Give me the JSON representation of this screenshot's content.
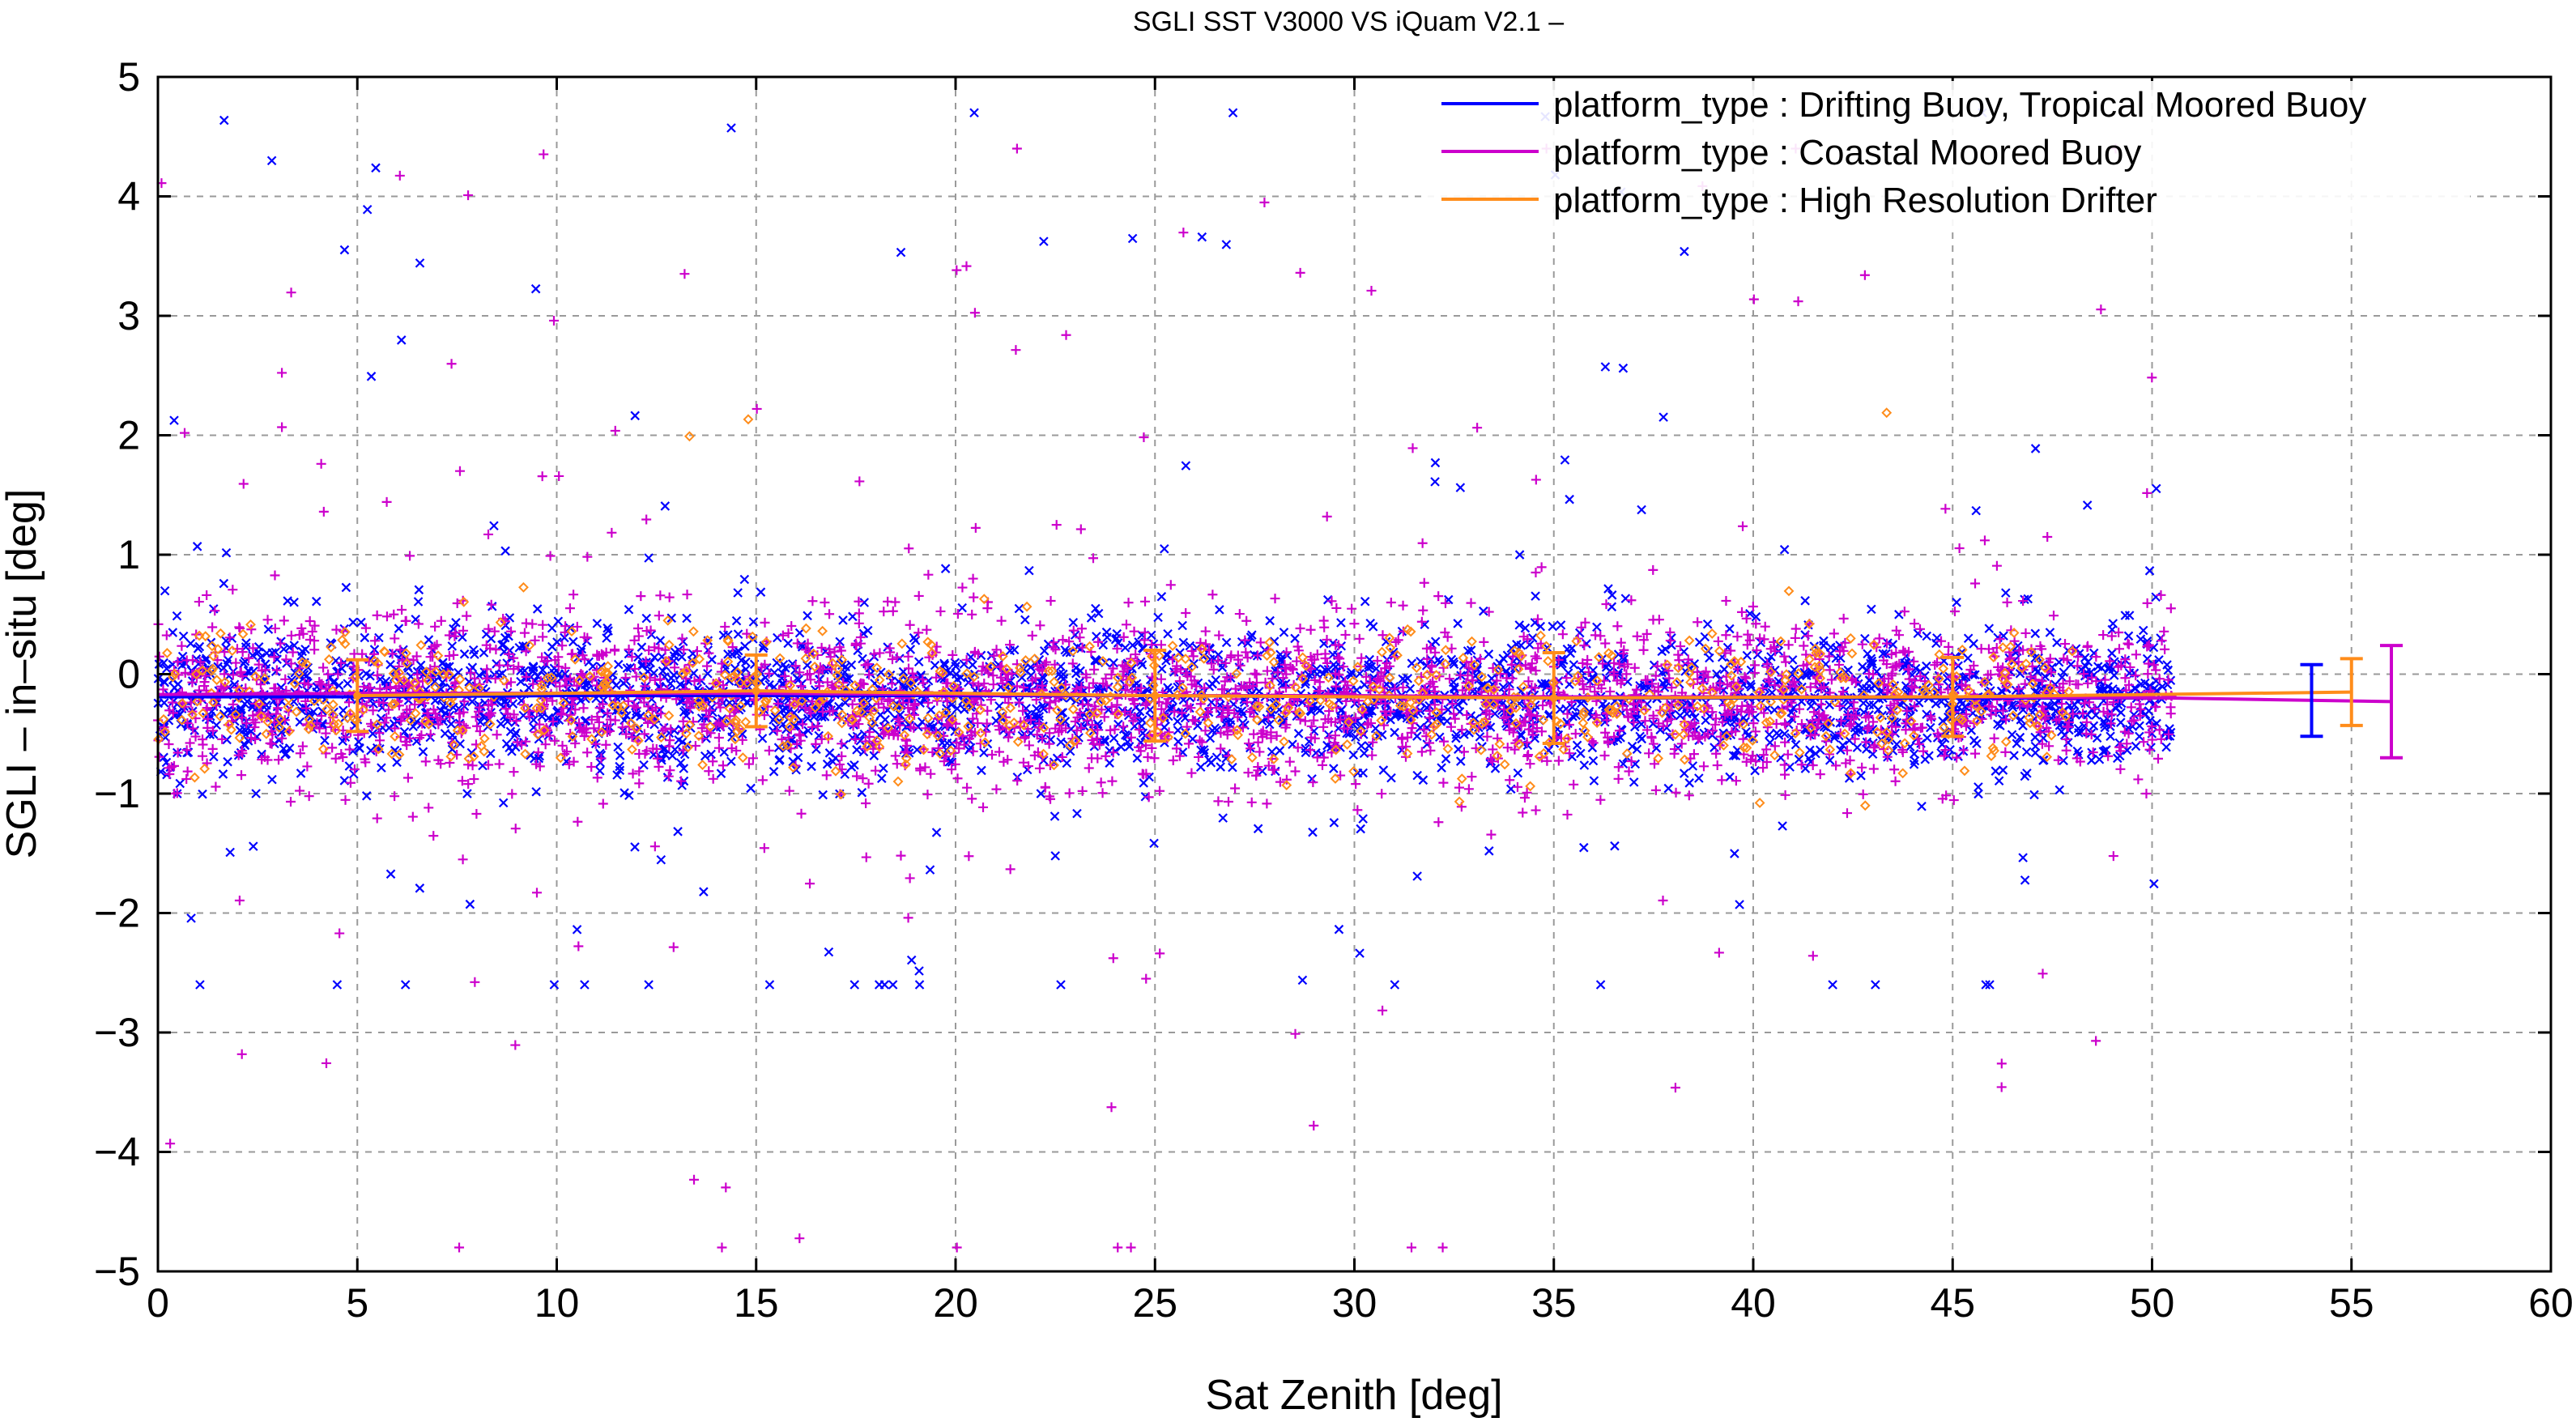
{
  "chart_data": {
    "type": "scatter",
    "title": "SGLI SST V3000 VS iQuam V2.1  –",
    "xlabel": "Sat Zenith [deg]",
    "ylabel": "SGLI – in–situ [deg]",
    "xlim": [
      0,
      60
    ],
    "ylim": [
      -5,
      5
    ],
    "xticks": [
      0,
      5,
      10,
      15,
      20,
      25,
      30,
      35,
      40,
      45,
      50,
      55,
      60
    ],
    "yticks": [
      -5,
      -4,
      -3,
      -2,
      -1,
      0,
      1,
      2,
      3,
      4,
      5
    ],
    "grid": true,
    "legend_position": "top-right",
    "series": [
      {
        "name": "platform_type : Drifting Buoy, Tropical Moored Buoy",
        "color": "#0000ff",
        "marker": "x",
        "bias_line": {
          "x": [
            0,
            5,
            10,
            15,
            20,
            25,
            30,
            35,
            40,
            45,
            50.5
          ],
          "y": [
            -0.19,
            -0.19,
            -0.18,
            -0.18,
            -0.18,
            -0.18,
            -0.19,
            -0.2,
            -0.2,
            -0.2,
            -0.2
          ]
        },
        "overall_errorbar": {
          "x": 54,
          "mean": -0.22,
          "std": 0.3
        },
        "scatter_stats": {
          "x_max": 50.5,
          "center": -0.2,
          "core_spread": 0.3,
          "outlier_range": [
            -2.6,
            4.7
          ]
        }
      },
      {
        "name": "platform_type : Coastal Moored Buoy",
        "color": "#cc00cc",
        "marker": "+",
        "bias_line": {
          "x": [
            0,
            5,
            10,
            15,
            20,
            25,
            30,
            35,
            40,
            45,
            50.5,
            56
          ],
          "y": [
            -0.17,
            -0.16,
            -0.16,
            -0.16,
            -0.17,
            -0.18,
            -0.18,
            -0.19,
            -0.19,
            -0.19,
            -0.2,
            -0.23
          ]
        },
        "overall_errorbar": {
          "x": 56,
          "mean": -0.23,
          "std": 0.47
        },
        "scatter_stats": {
          "x_max": 50.5,
          "center": -0.2,
          "core_spread": 0.35,
          "outlier_range": [
            -4.8,
            4.4
          ]
        }
      },
      {
        "name": "platform_type : High Resolution Drifter",
        "color": "#ff8c1a",
        "marker": "diamond",
        "bias_line": {
          "x": [
            5,
            15,
            25,
            35,
            45,
            55
          ],
          "y": [
            -0.18,
            -0.14,
            -0.18,
            -0.2,
            -0.19,
            -0.15
          ]
        },
        "binned_errorbars": [
          {
            "x": 5,
            "mean": -0.18,
            "std": 0.3
          },
          {
            "x": 15,
            "mean": -0.14,
            "std": 0.3
          },
          {
            "x": 25,
            "mean": -0.18,
            "std": 0.38
          },
          {
            "x": 35,
            "mean": -0.2,
            "std": 0.38
          },
          {
            "x": 45,
            "mean": -0.19,
            "std": 0.33
          }
        ],
        "overall_errorbar": {
          "x": 55,
          "mean": -0.15,
          "std": 0.28
        },
        "scatter_stats": {
          "x_max": 48,
          "center": -0.2,
          "core_spread": 0.28,
          "outlier_range": [
            -1.1,
            2.9
          ]
        }
      }
    ]
  }
}
